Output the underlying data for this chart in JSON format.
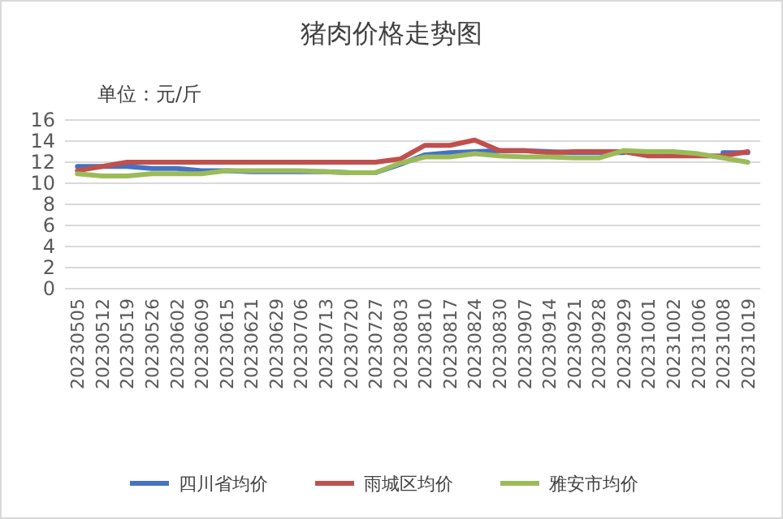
{
  "chart_data": {
    "type": "line",
    "title": "猪肉价格走势图",
    "subtitle": "单位：元/斤",
    "categories": [
      "20230505",
      "20230512",
      "20230519",
      "20230526",
      "20230602",
      "20230609",
      "20230615",
      "20230621",
      "20230629",
      "20230706",
      "20230713",
      "20230720",
      "20230727",
      "20230803",
      "20230810",
      "20230817",
      "20230824",
      "20230830",
      "20230907",
      "20230914",
      "20230921",
      "20230928",
      "20230929",
      "20231001",
      "20231002",
      "20231006",
      "20231008",
      "20231019"
    ],
    "series": [
      {
        "name": "四川省均价",
        "color": "#4472c4",
        "values": [
          11.6,
          11.6,
          11.6,
          11.4,
          11.4,
          11.2,
          11.2,
          11.1,
          11.1,
          11.1,
          11.1,
          11.0,
          11.0,
          11.8,
          12.7,
          12.9,
          13.0,
          13.1,
          13.1,
          13.0,
          12.9,
          12.9,
          12.9,
          null,
          null,
          null,
          12.9,
          12.9
        ]
      },
      {
        "name": "雨城区均价",
        "color": "#c0504d",
        "values": [
          11.2,
          11.6,
          12.0,
          12.0,
          12.0,
          12.0,
          12.0,
          12.0,
          12.0,
          12.0,
          12.0,
          12.0,
          12.0,
          12.3,
          13.6,
          13.6,
          14.1,
          13.1,
          13.1,
          12.9,
          13.0,
          13.0,
          13.0,
          12.6,
          12.6,
          12.6,
          12.6,
          13.0
        ]
      },
      {
        "name": "雅安市均价",
        "color": "#9bbb59",
        "values": [
          10.9,
          10.7,
          10.7,
          10.9,
          10.9,
          10.9,
          11.2,
          11.2,
          11.2,
          11.2,
          11.1,
          11.0,
          11.0,
          11.9,
          12.5,
          12.5,
          12.8,
          12.6,
          12.5,
          12.5,
          12.4,
          12.4,
          13.1,
          13.0,
          13.0,
          12.8,
          12.4,
          12.0
        ]
      }
    ],
    "ylim": [
      0,
      16
    ],
    "yticks": [
      0,
      2,
      4,
      6,
      8,
      10,
      12,
      14,
      16
    ],
    "grid": "y",
    "legend": "bottom",
    "marker": "none",
    "line_style": "solid"
  }
}
